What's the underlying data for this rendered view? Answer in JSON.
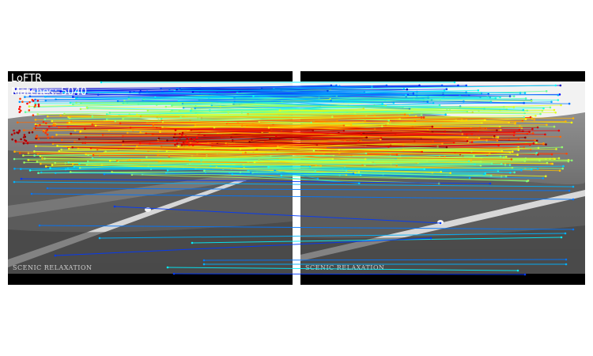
{
  "figure": {
    "method_label": "LoFTR",
    "matches_label": "Matches: 5040",
    "watermark_left": "SCENIC RELAXATION",
    "watermark_right": "SCENIC RELAXATION",
    "colormap": "jet",
    "match_count": 5040,
    "colors": {
      "background": "#ffffff",
      "frame": "#000000",
      "sky": "#f2f2f2",
      "terrain": "#6e6e6e",
      "road": "#d8d8d8",
      "label_text": "#ffffff"
    }
  }
}
